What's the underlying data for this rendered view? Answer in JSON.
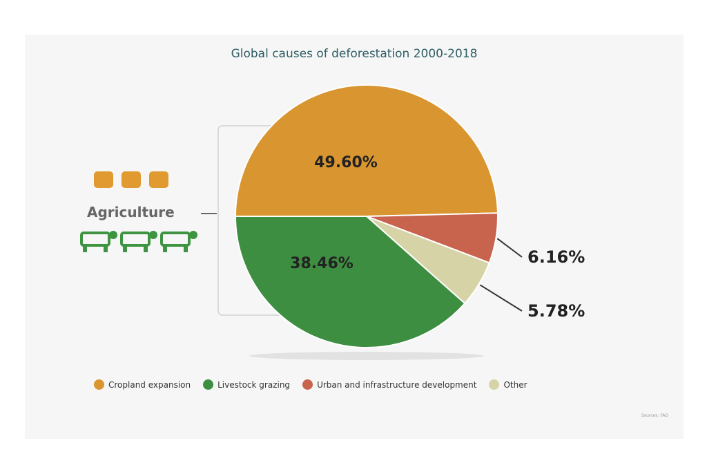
{
  "chart_data": {
    "type": "pie",
    "title": "Global causes of deforestation 2000-2018",
    "slices": [
      {
        "name": "Cropland expansion",
        "value": 49.6,
        "label": "49.60%",
        "color": "#D9952F"
      },
      {
        "name": "Urban and infrastructure development",
        "value": 6.16,
        "label": "6.16%",
        "color": "#C8634E"
      },
      {
        "name": "Other",
        "value": 5.78,
        "label": "5.78%",
        "color": "#D6D4A6"
      },
      {
        "name": "Livestock grazing",
        "value": 38.46,
        "label": "38.46%",
        "color": "#3E8E41"
      }
    ],
    "legend": [
      "Cropland expansion",
      "Livestock grazing",
      "Urban and infrastructure development",
      "Other"
    ],
    "legend_placement": "bottom",
    "group_annotation": {
      "label": "Agriculture",
      "icons": [
        "corn-icon",
        "wheat-icon",
        "crop-field-icon",
        "cow-icon",
        "cow-icon",
        "cow-icon"
      ]
    },
    "source": "Sources: FAO"
  }
}
